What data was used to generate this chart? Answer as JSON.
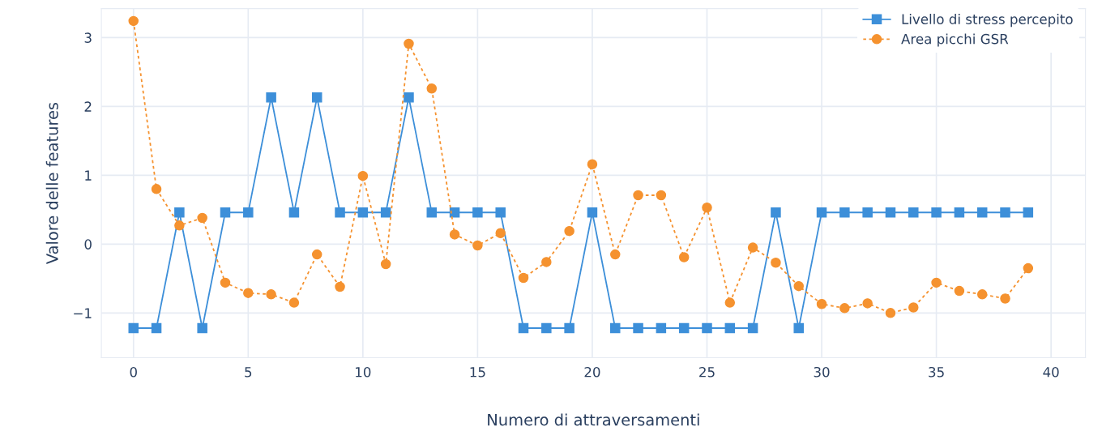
{
  "chart_data": {
    "type": "line",
    "xlabel": "Numero di attraversamenti",
    "ylabel": "Valore delle features",
    "x": [
      0,
      1,
      2,
      3,
      4,
      5,
      6,
      7,
      8,
      9,
      10,
      11,
      12,
      13,
      14,
      15,
      16,
      17,
      18,
      19,
      20,
      21,
      22,
      23,
      24,
      25,
      26,
      27,
      28,
      29,
      30,
      31,
      32,
      33,
      34,
      35,
      36,
      37,
      38,
      39
    ],
    "series": [
      {
        "name": "Livello di stress percepito",
        "color": "#3d8fd9",
        "marker": "square",
        "line_style": "solid",
        "values": [
          -1.22,
          -1.22,
          0.46,
          -1.22,
          0.46,
          0.46,
          2.13,
          0.46,
          2.13,
          0.46,
          0.46,
          0.46,
          2.13,
          0.46,
          0.46,
          0.46,
          0.46,
          -1.22,
          -1.22,
          -1.22,
          0.46,
          -1.22,
          -1.22,
          -1.22,
          -1.22,
          -1.22,
          -1.22,
          -1.22,
          0.46,
          -1.22,
          0.46,
          0.46,
          0.46,
          0.46,
          0.46,
          0.46,
          0.46,
          0.46,
          0.46,
          0.46
        ]
      },
      {
        "name": "Area picchi GSR",
        "color": "#f5922f",
        "marker": "circle",
        "line_style": "dotted",
        "values": [
          3.24,
          0.8,
          0.27,
          0.38,
          -0.56,
          -0.71,
          -0.73,
          -0.85,
          -0.15,
          -0.62,
          0.99,
          -0.29,
          2.91,
          2.26,
          0.14,
          -0.02,
          0.16,
          -0.49,
          -0.26,
          0.19,
          1.16,
          -0.15,
          0.71,
          0.71,
          -0.19,
          0.53,
          -0.85,
          -0.05,
          -0.27,
          -0.61,
          -0.87,
          -0.93,
          -0.86,
          -1.0,
          -0.92,
          -0.56,
          -0.68,
          -0.73,
          -0.79,
          -0.35
        ]
      }
    ],
    "xlim": [
      -1.4,
      41.5
    ],
    "xticks": [
      0,
      5,
      10,
      15,
      20,
      25,
      30,
      35,
      40
    ],
    "ylim": [
      -1.65,
      3.42
    ],
    "yticks": [
      -1,
      0,
      1,
      2,
      3
    ],
    "grid": true,
    "legend": "top right"
  }
}
